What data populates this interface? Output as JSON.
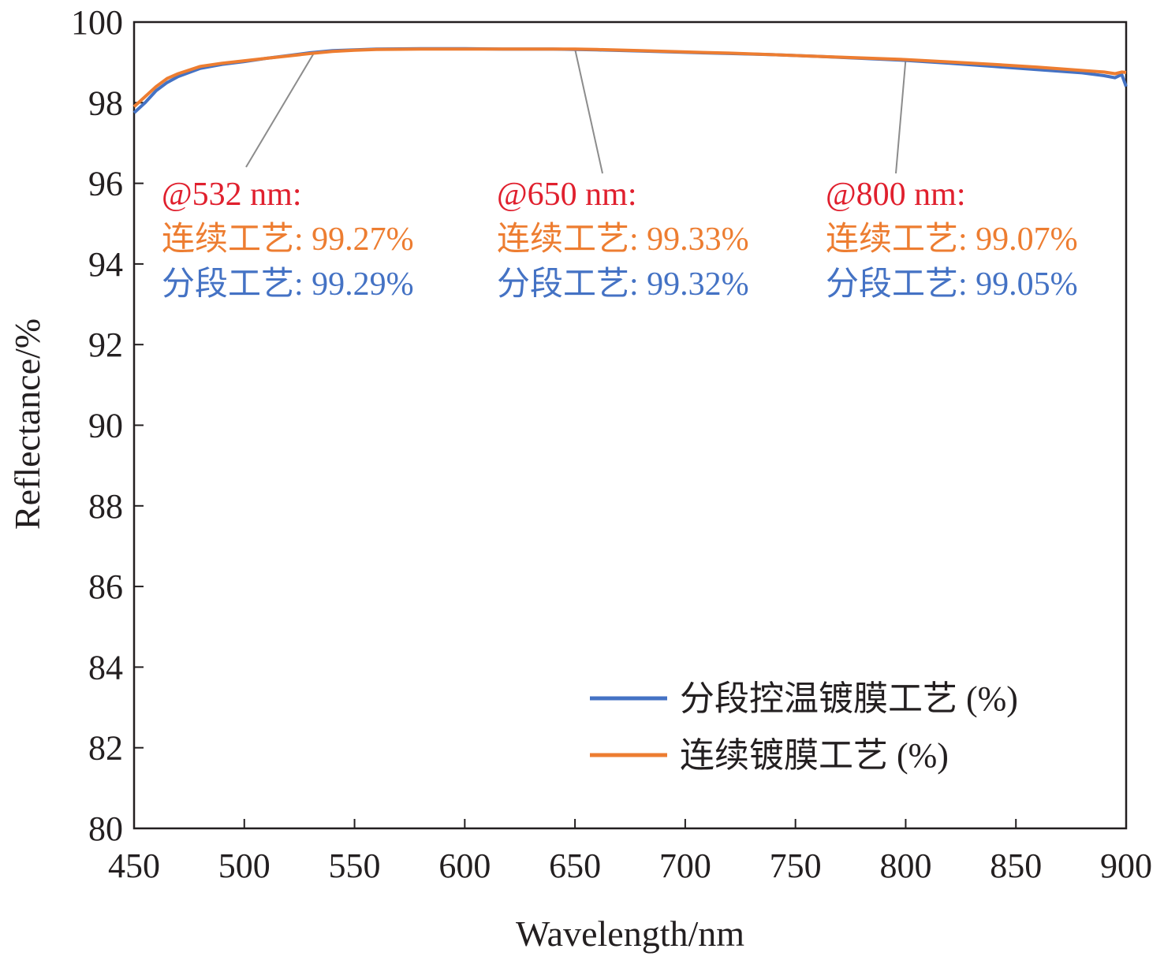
{
  "colors": {
    "series_segmented": "#4472c4",
    "series_continuous": "#ed7d31",
    "annotation_head": "#e0202e",
    "leader_line": "#8c8c8c",
    "axis": "#231f20"
  },
  "chart_data": {
    "type": "line",
    "xlabel": "Wavelength/nm",
    "ylabel": "Reflectance/%",
    "xlim": [
      450,
      900
    ],
    "ylim": [
      80,
      100
    ],
    "xticks": [
      "450",
      "500",
      "550",
      "600",
      "650",
      "700",
      "750",
      "800",
      "850",
      "900"
    ],
    "yticks": [
      "80",
      "82",
      "84",
      "86",
      "88",
      "90",
      "92",
      "94",
      "96",
      "98",
      "100"
    ],
    "grid": false,
    "legend_position": "bottom-right",
    "series": [
      {
        "name": "分段控温镀膜工艺 (%)",
        "color": "#4472c4",
        "x": [
          450,
          455,
          460,
          465,
          470,
          480,
          490,
          500,
          510,
          520,
          530,
          540,
          550,
          560,
          580,
          600,
          620,
          640,
          650,
          660,
          680,
          700,
          720,
          740,
          760,
          780,
          800,
          820,
          840,
          860,
          880,
          890,
          895,
          898,
          900
        ],
        "y": [
          97.75,
          98.0,
          98.3,
          98.5,
          98.65,
          98.85,
          98.95,
          99.02,
          99.1,
          99.17,
          99.24,
          99.29,
          99.31,
          99.33,
          99.34,
          99.34,
          99.33,
          99.33,
          99.32,
          99.31,
          99.28,
          99.25,
          99.22,
          99.19,
          99.15,
          99.1,
          99.05,
          98.98,
          98.9,
          98.82,
          98.74,
          98.67,
          98.62,
          98.7,
          98.4
        ]
      },
      {
        "name": "连续镀膜工艺 (%)",
        "color": "#ed7d31",
        "x": [
          450,
          455,
          460,
          465,
          470,
          480,
          490,
          500,
          510,
          520,
          530,
          540,
          550,
          560,
          580,
          600,
          620,
          640,
          650,
          660,
          680,
          700,
          720,
          740,
          760,
          780,
          800,
          820,
          840,
          860,
          880,
          890,
          895,
          898,
          900
        ],
        "y": [
          97.9,
          98.15,
          98.4,
          98.6,
          98.72,
          98.9,
          98.98,
          99.04,
          99.1,
          99.16,
          99.22,
          99.27,
          99.3,
          99.32,
          99.33,
          99.33,
          99.33,
          99.33,
          99.33,
          99.32,
          99.29,
          99.26,
          99.23,
          99.19,
          99.15,
          99.11,
          99.07,
          99.01,
          98.95,
          98.88,
          98.8,
          98.76,
          98.72,
          98.76,
          98.75
        ]
      }
    ],
    "annotations": [
      {
        "head": "@532 nm:",
        "continuous": "连续工艺: 99.27%",
        "segmented": "分段工艺: 99.29%",
        "point_x": 532,
        "point_y": 99.27
      },
      {
        "head": "@650 nm:",
        "continuous": "连续工艺: 99.33%",
        "segmented": "分段工艺: 99.32%",
        "point_x": 650,
        "point_y": 99.33
      },
      {
        "head": "@800 nm:",
        "continuous": "连续工艺: 99.07%",
        "segmented": "分段工艺: 99.05%",
        "point_x": 800,
        "point_y": 99.07
      }
    ]
  }
}
